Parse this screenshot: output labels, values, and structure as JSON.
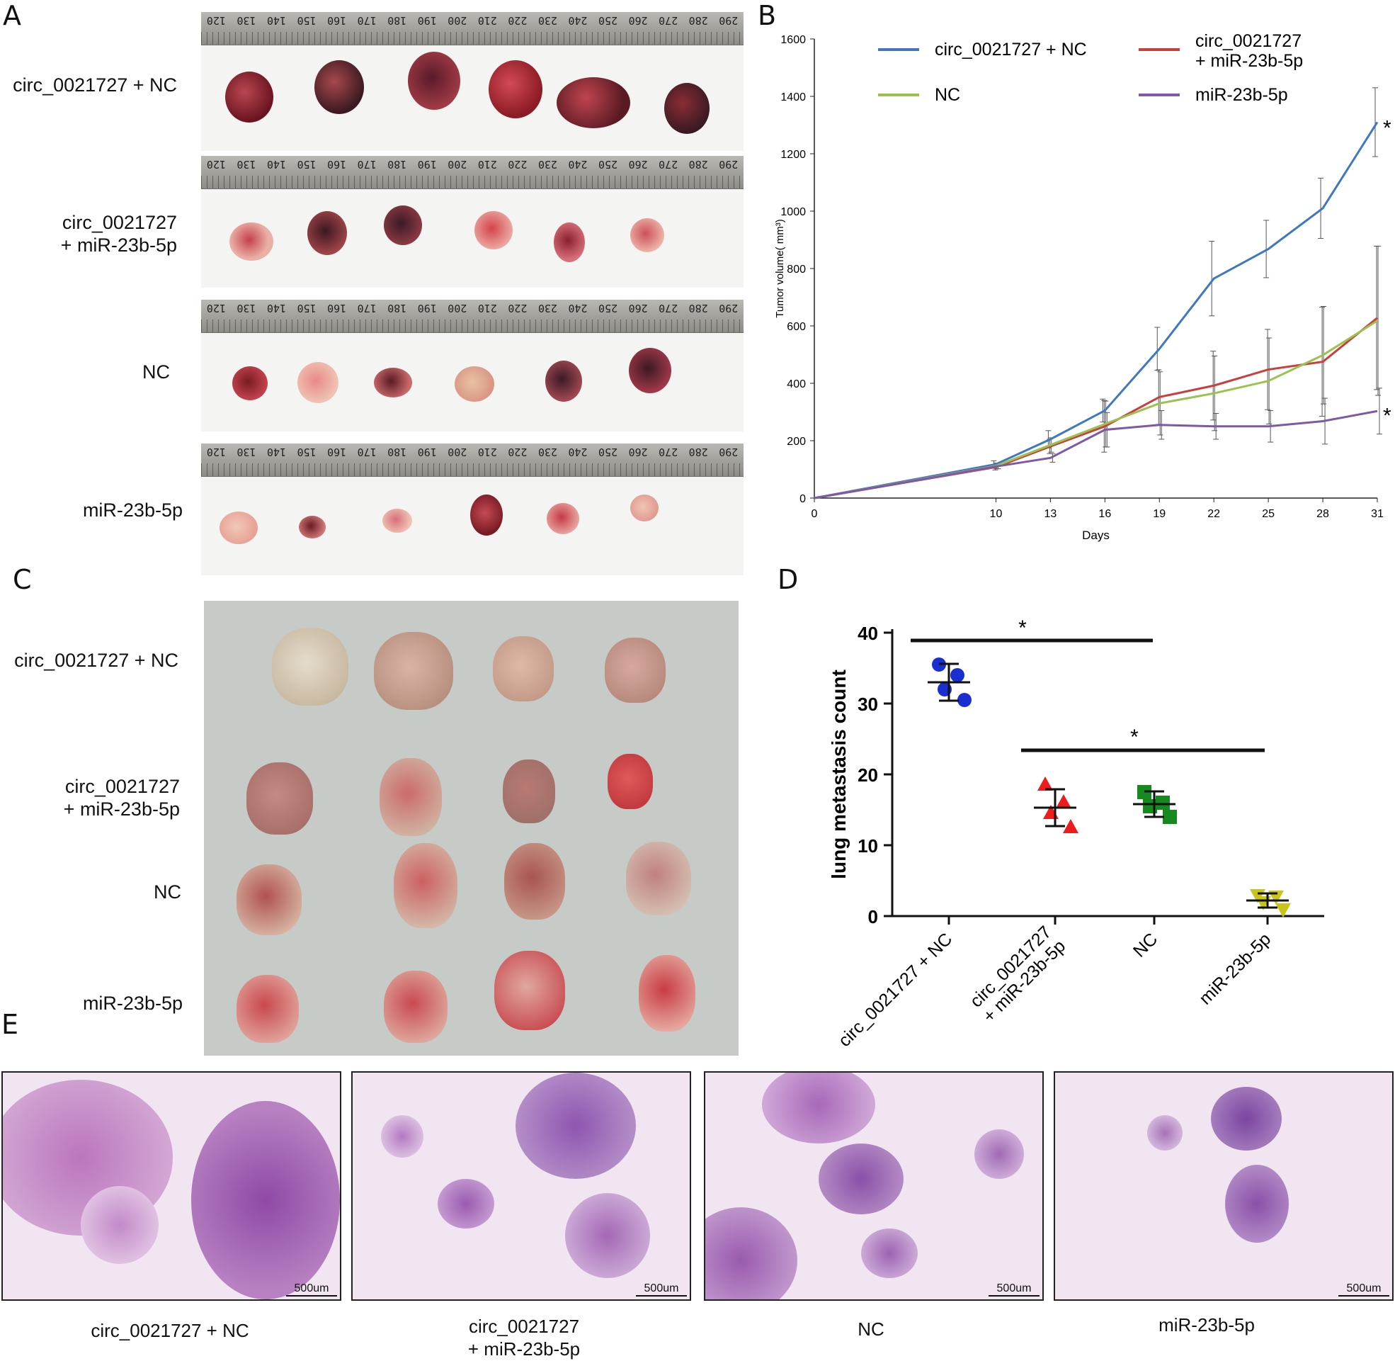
{
  "panel_letters": {
    "a": "A",
    "b": "B",
    "c": "C",
    "d": "D",
    "e": "E"
  },
  "panel_a": {
    "rows": [
      {
        "label_lines": [
          "circ_0021727 + NC"
        ]
      },
      {
        "label_lines": [
          "circ_0021727",
          "+ miR-23b-5p"
        ]
      },
      {
        "label_lines": [
          "NC"
        ]
      },
      {
        "label_lines": [
          "miR-23b-5p"
        ]
      }
    ],
    "ruler_numbers": [
      "290",
      "280",
      "270",
      "260",
      "250",
      "240",
      "230",
      "220",
      "210",
      "200",
      "190",
      "180",
      "170",
      "160",
      "150",
      "140",
      "130",
      "120"
    ]
  },
  "chart_data": [
    {
      "type": "line",
      "xlabel": "Days",
      "ylabel": "Tumor volume( mm³)",
      "x": [
        0,
        10,
        13,
        16,
        19,
        22,
        25,
        28,
        31
      ],
      "xticks": [
        "0",
        "10",
        "13",
        "16",
        "19",
        "22",
        "25",
        "28",
        "31"
      ],
      "ylim": [
        0,
        1600
      ],
      "yticks": [
        "0",
        "200",
        "400",
        "600",
        "800",
        "1000",
        "1200",
        "1400",
        "1600"
      ],
      "series": [
        {
          "name": "circ_0021727 + NC",
          "color": "#3f78c0",
          "values": [
            0,
            118,
            205,
            305,
            520,
            765,
            868,
            1010,
            1310
          ],
          "errors": [
            0,
            12,
            30,
            40,
            75,
            130,
            100,
            105,
            120
          ]
        },
        {
          "name": "circ_0021727 + miR-23b-5p",
          "color": "#c8403e",
          "values": [
            0,
            108,
            180,
            250,
            352,
            392,
            448,
            475,
            628
          ],
          "errors": [
            0,
            10,
            25,
            90,
            95,
            120,
            140,
            190,
            250
          ]
        },
        {
          "name": "NC",
          "color": "#9bc24e",
          "values": [
            0,
            112,
            185,
            258,
            330,
            365,
            408,
            498,
            618
          ],
          "errors": [
            0,
            10,
            25,
            80,
            110,
            130,
            150,
            170,
            260
          ]
        },
        {
          "name": "miR-23b-5p",
          "color": "#7c5aa6",
          "values": [
            0,
            110,
            140,
            238,
            255,
            250,
            250,
            268,
            303
          ],
          "errors": [
            0,
            8,
            15,
            60,
            50,
            45,
            55,
            80,
            80
          ]
        }
      ],
      "legend": [
        {
          "lines": [
            "circ_0021727 + NC"
          ],
          "color": "#3f78c0"
        },
        {
          "lines": [
            "circ_0021727",
            "+ miR-23b-5p"
          ],
          "color": "#c8403e"
        },
        {
          "lines": [
            "NC"
          ],
          "color": "#9bc24e"
        },
        {
          "lines": [
            "miR-23b-5p"
          ],
          "color": "#7c5aa6"
        }
      ],
      "annotations": [
        "*",
        "*"
      ]
    },
    {
      "type": "scatter",
      "ylabel": "lung metastasis count",
      "ylim": [
        0,
        40
      ],
      "yticks": [
        "0",
        "10",
        "20",
        "30",
        "40"
      ],
      "categories": [
        "circ_0021727 + NC",
        "circ_0021727 + miR-23b-5p",
        "NC",
        "miR-23b-5p"
      ],
      "category_lines": [
        [
          "circ_0021727 + NC"
        ],
        [
          "circ_0021727",
          "+ miR-23b-5p"
        ],
        [
          "NC"
        ],
        [
          "miR-23b-5p"
        ]
      ],
      "groups": [
        {
          "name": "circ_0021727 + NC",
          "color": "#1a2fd0",
          "marker": "circle",
          "points": [
            35.5,
            34,
            32,
            30.5
          ],
          "mean": 33,
          "sd": 2.6
        },
        {
          "name": "circ_0021727 + miR-23b-5p",
          "color": "#ee1c1c",
          "marker": "triangle-up",
          "points": [
            18.5,
            16,
            14.5,
            12.5
          ],
          "mean": 15.3,
          "sd": 2.6
        },
        {
          "name": "NC",
          "color": "#168a1e",
          "marker": "square",
          "points": [
            17.5,
            16,
            15.5,
            14
          ],
          "mean": 15.8,
          "sd": 1.8
        },
        {
          "name": "miR-23b-5p",
          "color": "#c8c41a",
          "marker": "triangle-down",
          "points": [
            3,
            2.8,
            2,
            1
          ],
          "mean": 2.2,
          "sd": 1
        }
      ],
      "significance": [
        {
          "from": "circ_0021727 + NC",
          "to": "NC",
          "label": "*"
        },
        {
          "from": "circ_0021727 + miR-23b-5p",
          "to": "miR-23b-5p",
          "label": "*"
        }
      ]
    }
  ],
  "panel_c": {
    "rows": [
      {
        "label_lines": [
          "circ_0021727 + NC"
        ]
      },
      {
        "label_lines": [
          "circ_0021727",
          "+ miR-23b-5p"
        ]
      },
      {
        "label_lines": [
          "NC"
        ]
      },
      {
        "label_lines": [
          "miR-23b-5p"
        ]
      }
    ]
  },
  "panel_e": {
    "images": [
      {
        "caption_lines": [
          "circ_0021727 + NC"
        ],
        "scale": "500um"
      },
      {
        "caption_lines": [
          "circ_0021727",
          "+ miR-23b-5p"
        ],
        "scale": "500um"
      },
      {
        "caption_lines": [
          "NC"
        ],
        "scale": "500um"
      },
      {
        "caption_lines": [
          "miR-23b-5p"
        ],
        "scale": "500um"
      }
    ]
  }
}
